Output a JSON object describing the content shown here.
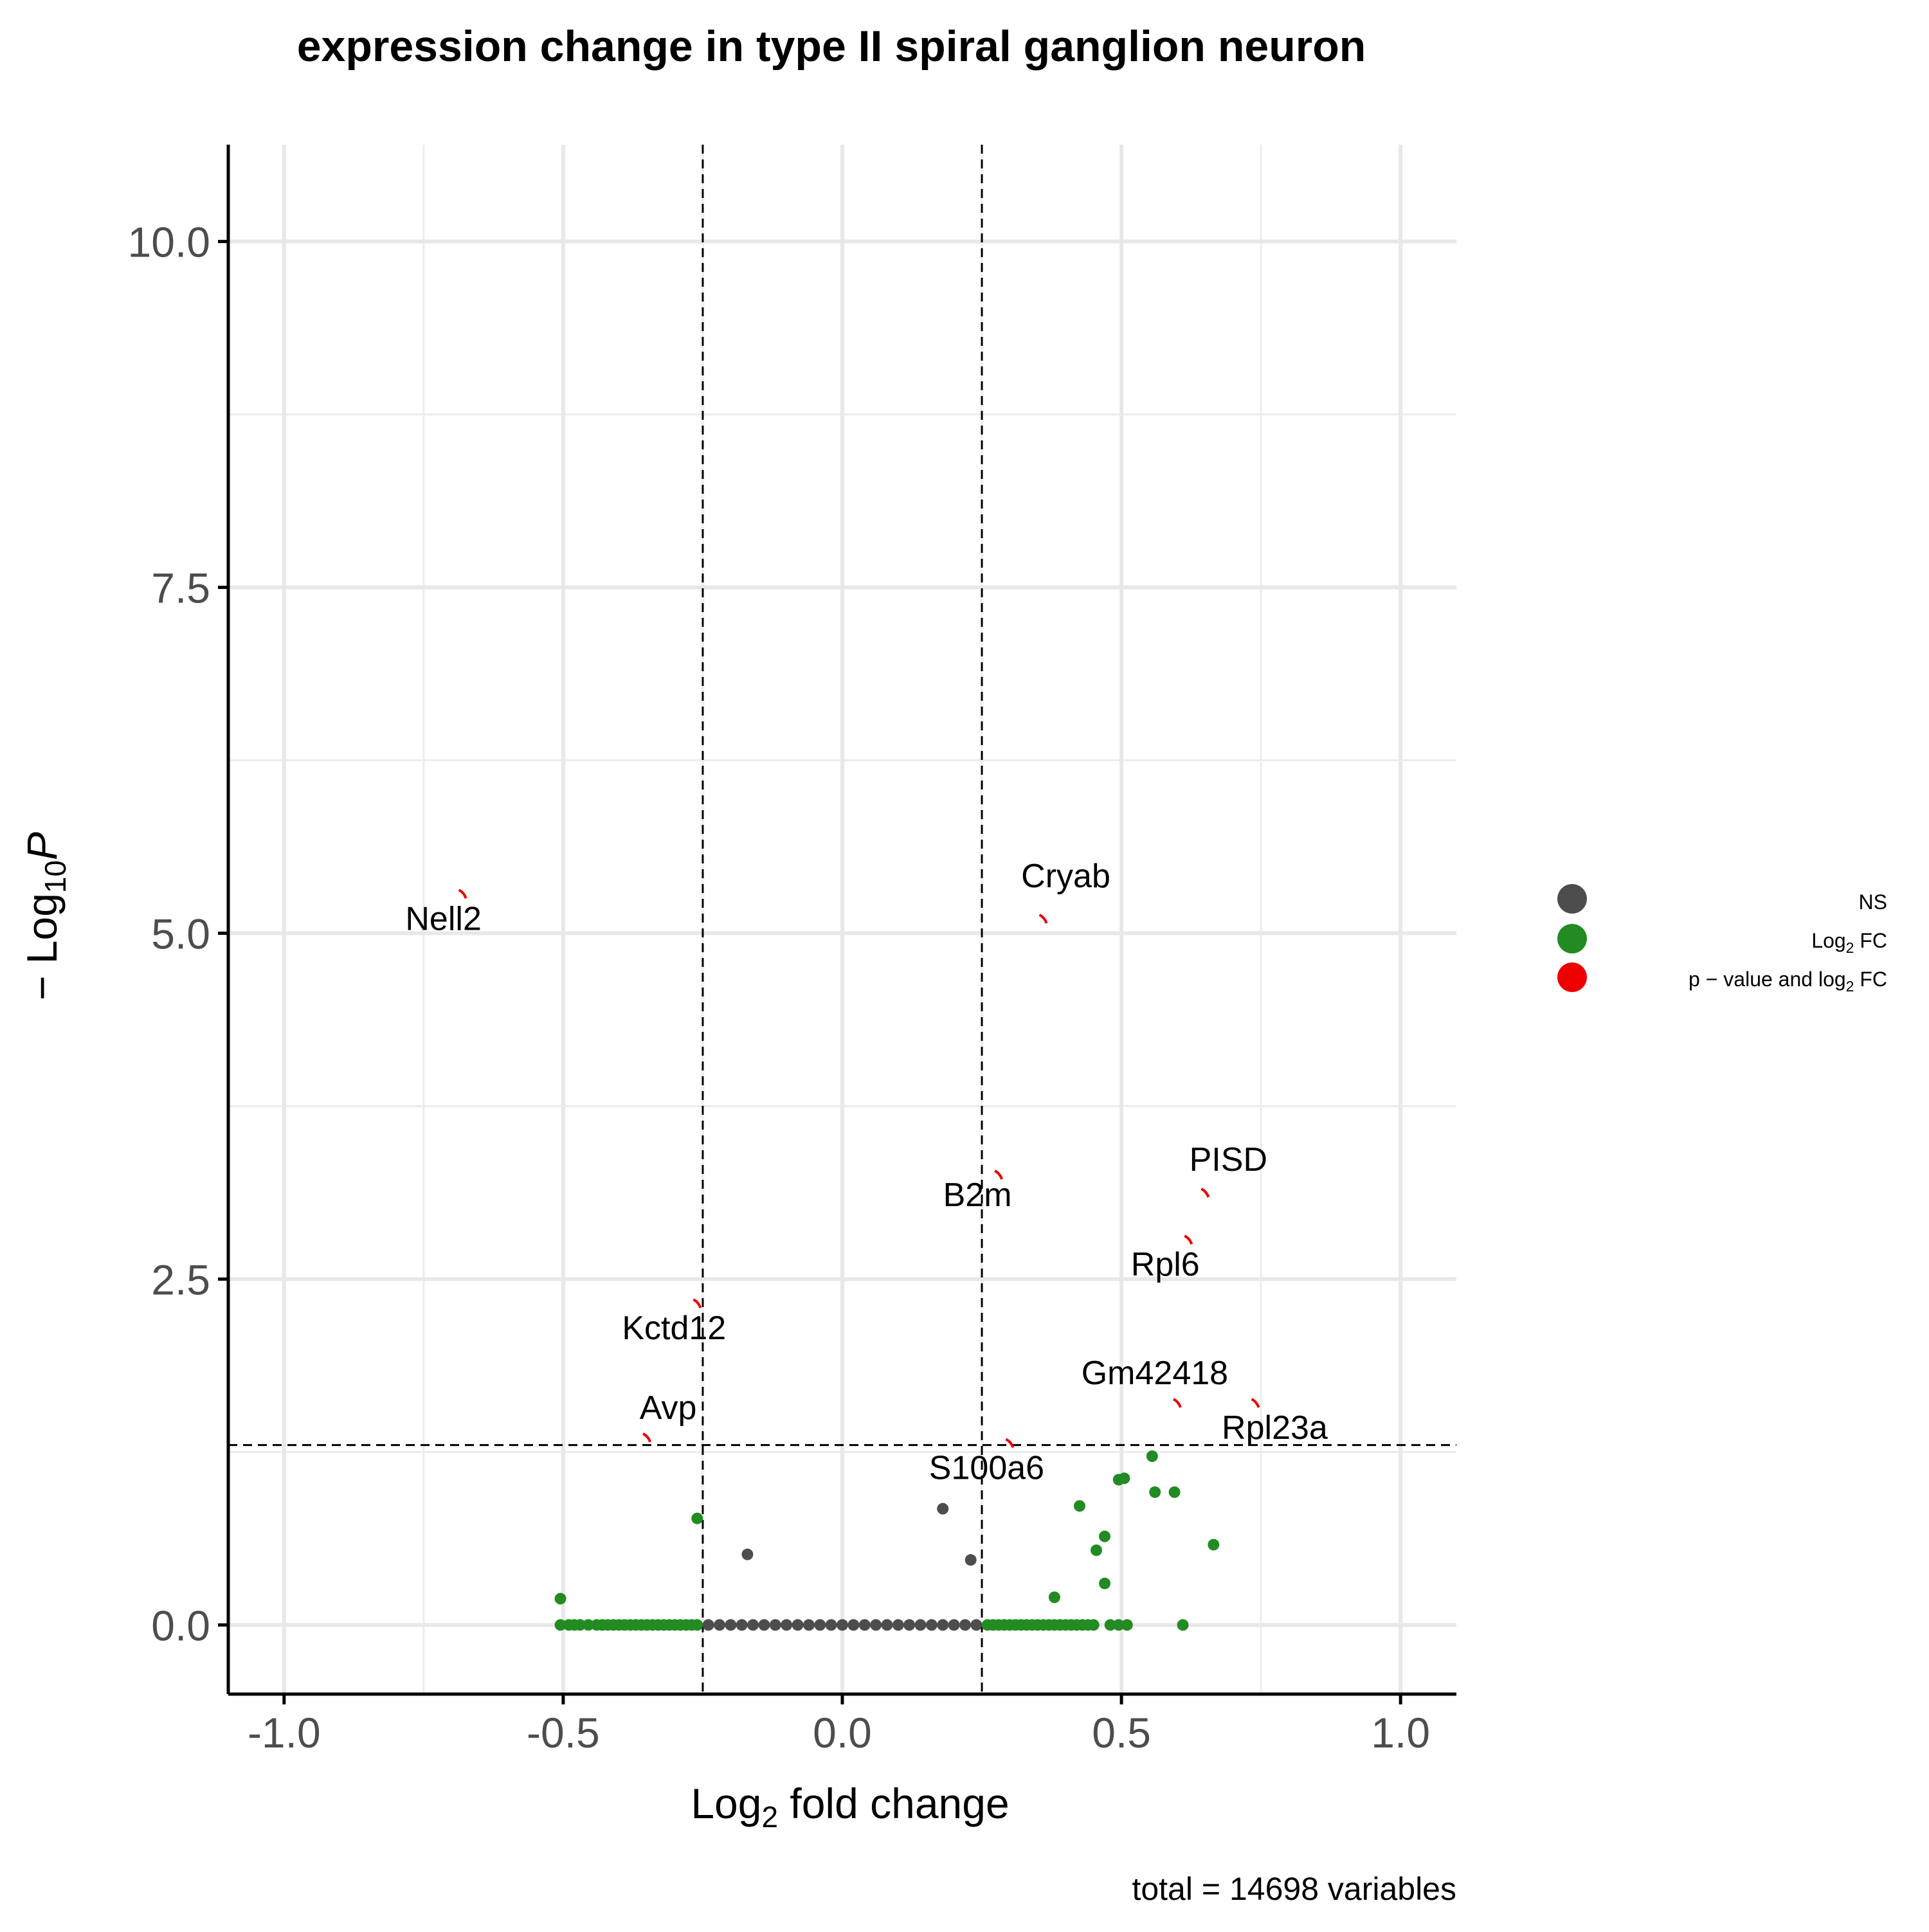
{
  "chart_data": {
    "type": "scatter",
    "title": "expression change in  type II spiral ganglion neuron",
    "xlabel": {
      "base": "Log",
      "sub": "2",
      "rest": " fold change"
    },
    "ylabel": {
      "prefix": "− Log",
      "sub": "10",
      "italic": "P"
    },
    "caption": "total = 14698 variables",
    "xlim": [
      -1.1,
      1.1
    ],
    "ylim": [
      -0.5,
      10.7
    ],
    "x_ticks": [
      -1.0,
      -0.5,
      0.0,
      0.5,
      1.0
    ],
    "x_tick_labels": [
      "-1.0",
      "-0.5",
      "0.0",
      "0.5",
      "1.0"
    ],
    "y_ticks": [
      0.0,
      2.5,
      5.0,
      7.5,
      10.0
    ],
    "y_tick_labels": [
      "0.0",
      "2.5",
      "5.0",
      "7.5",
      "10.0"
    ],
    "grid": true,
    "cutoffs": {
      "fc_low": -0.25,
      "fc_high": 0.25,
      "p_line": 1.3
    },
    "legend": {
      "position": "right",
      "entries": [
        {
          "key": "ns",
          "label": "NS",
          "color": "#4d4d4d"
        },
        {
          "key": "fc",
          "label": "Log",
          "sub": "2",
          "rest": " FC",
          "color": "#228B22"
        },
        {
          "key": "sig",
          "label": "p − value and log",
          "sub": "2",
          "rest": " FC",
          "color": "#ee0000"
        }
      ]
    },
    "labeled_points": [
      {
        "label": "Nell2",
        "x": -0.68,
        "y": 5.28
      },
      {
        "label": "Cryab",
        "x": 0.36,
        "y": 5.1
      },
      {
        "label": "B2m",
        "x": 0.28,
        "y": 3.25
      },
      {
        "label": "PISD",
        "x": 0.65,
        "y": 3.12
      },
      {
        "label": "Rpl6",
        "x": 0.62,
        "y": 2.78
      },
      {
        "label": "Kctd12",
        "x": -0.26,
        "y": 2.32
      },
      {
        "label": "Gm42418",
        "x": 0.6,
        "y": 1.6
      },
      {
        "label": "Rpl23a",
        "x": 0.74,
        "y": 1.6
      },
      {
        "label": "Avp",
        "x": -0.35,
        "y": 1.35
      },
      {
        "label": "S100a6",
        "x": 0.3,
        "y": 1.31
      }
    ],
    "series": [
      {
        "key": "ns",
        "points": [
          [
            -0.17,
            0.51
          ],
          [
            0.18,
            0.84
          ],
          [
            0.23,
            0.47
          ],
          [
            -0.24,
            0
          ],
          [
            -0.22,
            0
          ],
          [
            -0.2,
            0
          ],
          [
            -0.18,
            0
          ],
          [
            -0.16,
            0
          ],
          [
            -0.14,
            0
          ],
          [
            -0.12,
            0
          ],
          [
            -0.1,
            0
          ],
          [
            -0.08,
            0
          ],
          [
            -0.06,
            0
          ],
          [
            -0.04,
            0
          ],
          [
            -0.02,
            0
          ],
          [
            0.0,
            0
          ],
          [
            0.02,
            0
          ],
          [
            0.04,
            0
          ],
          [
            0.06,
            0
          ],
          [
            0.08,
            0
          ],
          [
            0.1,
            0
          ],
          [
            0.12,
            0
          ],
          [
            0.14,
            0
          ],
          [
            0.16,
            0
          ],
          [
            0.18,
            0
          ],
          [
            0.2,
            0
          ],
          [
            0.22,
            0
          ],
          [
            0.24,
            0
          ]
        ]
      },
      {
        "key": "fc",
        "points": [
          [
            -0.505,
            0.19
          ],
          [
            -0.26,
            0.77
          ],
          [
            0.38,
            0.2
          ],
          [
            0.425,
            0.86
          ],
          [
            0.455,
            0.54
          ],
          [
            0.47,
            0.64
          ],
          [
            0.47,
            0.3
          ],
          [
            0.495,
            1.05
          ],
          [
            0.505,
            1.06
          ],
          [
            0.555,
            1.22
          ],
          [
            0.56,
            0.96
          ],
          [
            0.595,
            0.96
          ],
          [
            0.665,
            0.58
          ],
          [
            -0.505,
            0
          ],
          [
            -0.49,
            0
          ],
          [
            -0.48,
            0
          ],
          [
            -0.47,
            0
          ],
          [
            -0.455,
            0
          ],
          [
            -0.44,
            0
          ],
          [
            -0.43,
            0
          ],
          [
            -0.42,
            0
          ],
          [
            -0.41,
            0
          ],
          [
            -0.4,
            0
          ],
          [
            -0.39,
            0
          ],
          [
            -0.38,
            0
          ],
          [
            -0.37,
            0
          ],
          [
            -0.36,
            0
          ],
          [
            -0.35,
            0
          ],
          [
            -0.34,
            0
          ],
          [
            -0.33,
            0
          ],
          [
            -0.32,
            0
          ],
          [
            -0.31,
            0
          ],
          [
            -0.3,
            0
          ],
          [
            -0.29,
            0
          ],
          [
            -0.28,
            0
          ],
          [
            -0.27,
            0
          ],
          [
            -0.26,
            0
          ],
          [
            0.26,
            0
          ],
          [
            0.27,
            0
          ],
          [
            0.28,
            0
          ],
          [
            0.29,
            0
          ],
          [
            0.3,
            0
          ],
          [
            0.31,
            0
          ],
          [
            0.32,
            0
          ],
          [
            0.33,
            0
          ],
          [
            0.34,
            0
          ],
          [
            0.35,
            0
          ],
          [
            0.36,
            0
          ],
          [
            0.37,
            0
          ],
          [
            0.38,
            0
          ],
          [
            0.39,
            0
          ],
          [
            0.4,
            0
          ],
          [
            0.41,
            0
          ],
          [
            0.42,
            0
          ],
          [
            0.43,
            0
          ],
          [
            0.44,
            0
          ],
          [
            0.45,
            0
          ],
          [
            0.48,
            0
          ],
          [
            0.495,
            0
          ],
          [
            0.51,
            0
          ],
          [
            0.61,
            0
          ]
        ]
      },
      {
        "key": "sig",
        "points": [
          [
            -0.68,
            5.28
          ],
          [
            0.36,
            5.1
          ],
          [
            0.28,
            3.25
          ],
          [
            0.65,
            3.12
          ],
          [
            0.62,
            2.78
          ],
          [
            -0.26,
            2.32
          ],
          [
            0.6,
            1.6
          ],
          [
            0.74,
            1.6
          ],
          [
            -0.35,
            1.35
          ],
          [
            0.3,
            1.31
          ]
        ]
      }
    ]
  }
}
